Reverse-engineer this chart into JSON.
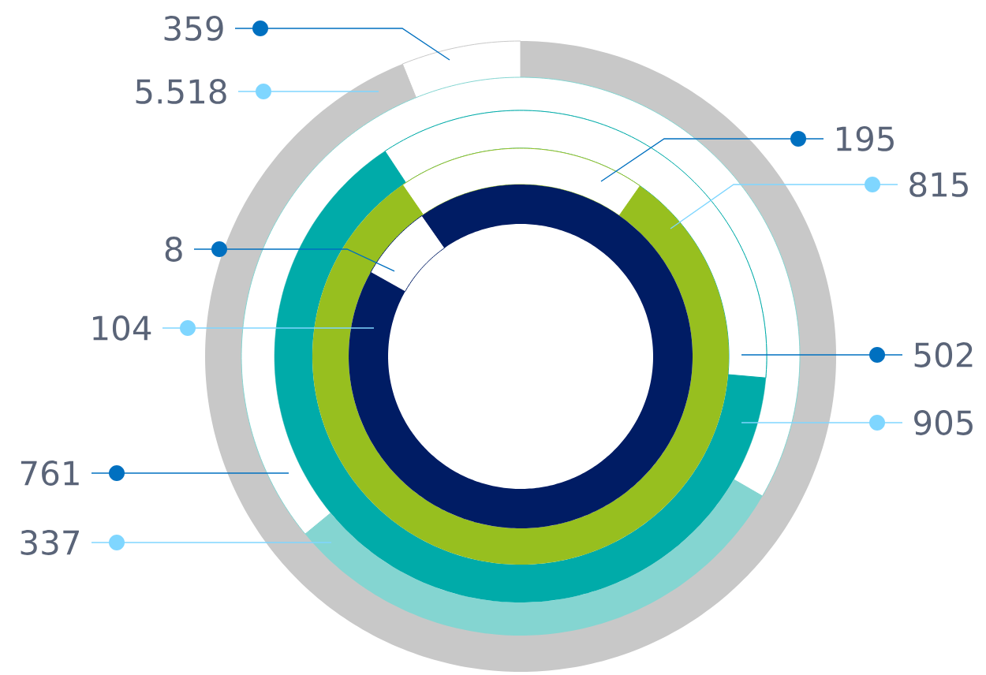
{
  "chart_data": [
    {
      "type": "donut",
      "categories": [
        null,
        null
      ],
      "colors": [
        "#ffffff",
        "#c8c8c8"
      ],
      "values": [
        359,
        5518
      ],
      "value_labels": [
        "359",
        "5.518"
      ]
    },
    {
      "type": "donut",
      "categories": [
        null,
        null
      ],
      "colors": [
        "#ffffff",
        "#84d5d1"
      ],
      "values": [
        761,
        337
      ],
      "value_labels": [
        "761",
        "337"
      ]
    },
    {
      "type": "donut",
      "categories": [
        null,
        null
      ],
      "colors": [
        "#ffffff",
        "#00aba9"
      ],
      "values": [
        502,
        905
      ],
      "value_labels": [
        "502",
        "905"
      ]
    },
    {
      "type": "donut",
      "categories": [
        null,
        null
      ],
      "colors": [
        "#ffffff",
        "#97bf1f"
      ],
      "values": [
        195,
        815
      ],
      "value_labels": [
        "195",
        "815"
      ]
    },
    {
      "type": "donut",
      "categories": [
        null,
        null
      ],
      "colors": [
        "#ffffff",
        "#001c64"
      ],
      "values": [
        8,
        104
      ],
      "value_labels": [
        "8",
        "104"
      ]
    }
  ]
}
